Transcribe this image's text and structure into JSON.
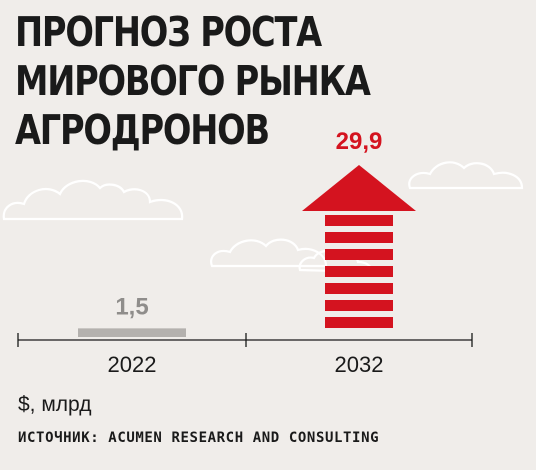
{
  "title_lines": [
    "ПРОГНОЗ РОСТА",
    "МИРОВОГО РЫНКА",
    "АГРОДРОНОВ"
  ],
  "unit_label": "$, млрд",
  "source": "ИСТОЧНИК: ACUMEN RESEARCH AND CONSULTING",
  "chart_data": {
    "type": "bar",
    "categories": [
      "2022",
      "2032"
    ],
    "values": [
      1.5,
      29.9
    ],
    "value_labels": [
      "1,5",
      "29,9"
    ],
    "ylabel": "$, млрд",
    "colors": {
      "past": "#b4b1ae",
      "future": "#d4131f",
      "text_past": "#8f8d8b"
    }
  }
}
